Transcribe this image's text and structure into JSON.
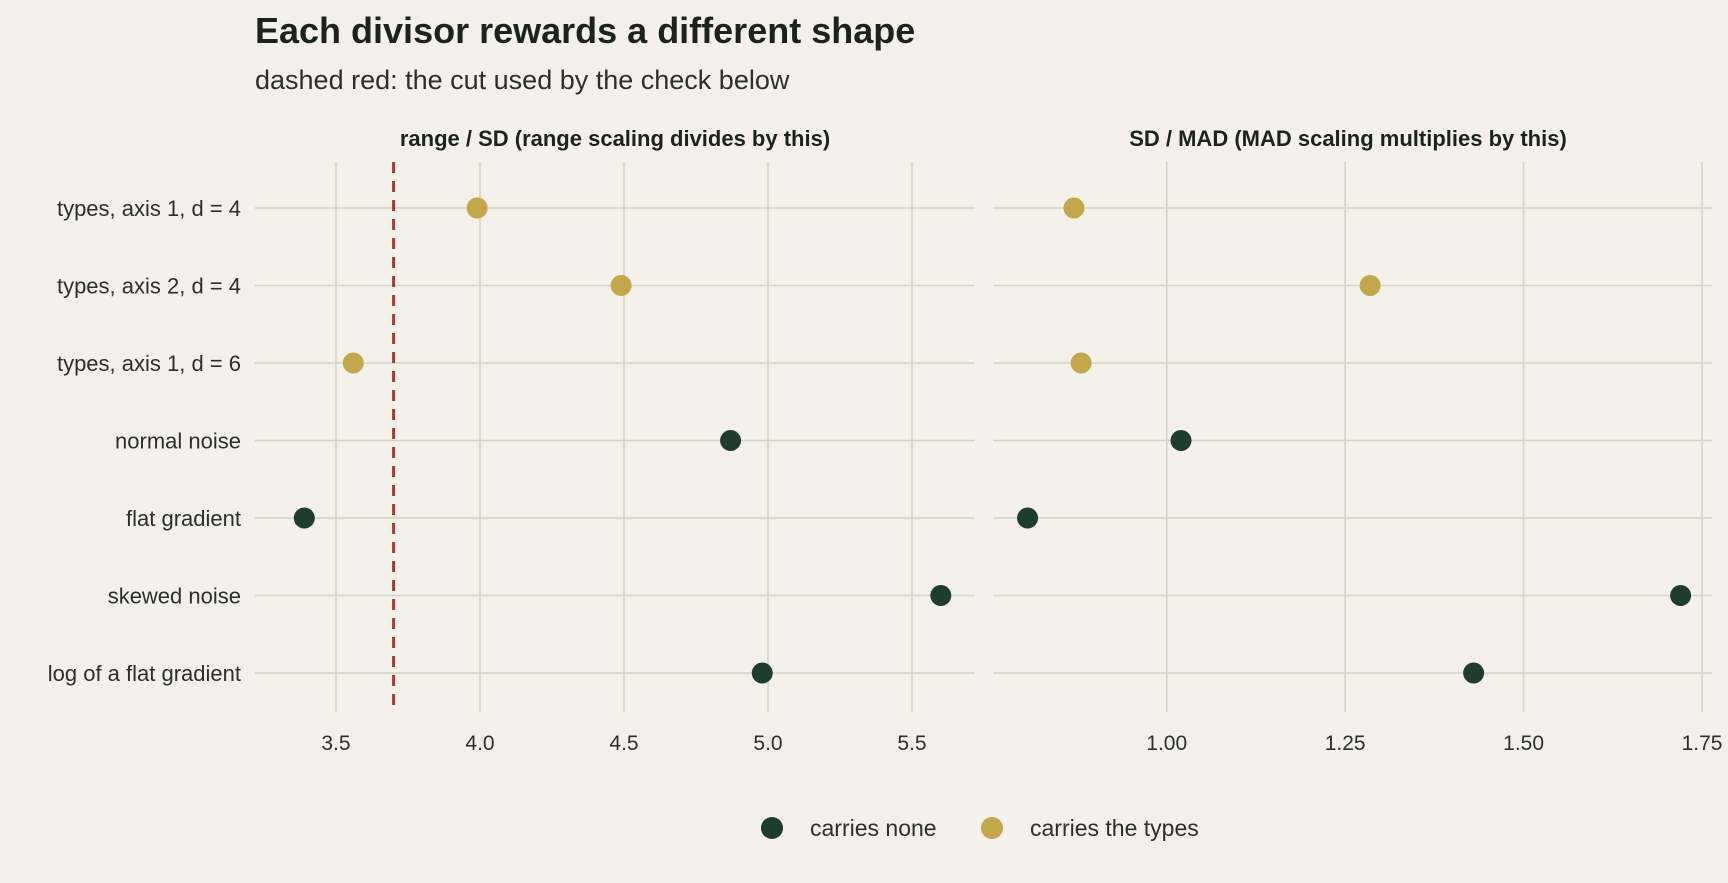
{
  "colors": {
    "background": "#f3f1ea",
    "grid": "#d6d4c6",
    "carries_none": "#1f3d2d",
    "carries_types": "#c2a84a",
    "cut_line": "#a33c37"
  },
  "chart_data": {
    "type": "scatter",
    "title": "Each divisor rewards a different shape",
    "subtitle": "dashed red: the cut used by the check below",
    "categories": [
      "types, axis 1, d = 4",
      "types, axis 2, d = 4",
      "types, axis 1, d = 6",
      "normal noise",
      "flat gradient",
      "skewed noise",
      "log of a flat gradient"
    ],
    "groups": [
      "carries the types",
      "carries the types",
      "carries the types",
      "carries none",
      "carries none",
      "carries none",
      "carries none"
    ],
    "legend": {
      "position": "bottom",
      "entries": [
        {
          "label": "carries none",
          "color": "#1f3d2d"
        },
        {
          "label": "carries the types",
          "color": "#c2a84a"
        }
      ]
    },
    "panels": [
      {
        "title": "range / SD (range scaling divides by this)",
        "xlim": [
          3.25,
          5.7
        ],
        "xticks": [
          3.5,
          4.0,
          4.5,
          5.0,
          5.5
        ],
        "xtick_labels": [
          "3.5",
          "4.0",
          "4.5",
          "5.0",
          "5.5"
        ],
        "values": [
          3.99,
          4.49,
          3.56,
          4.87,
          3.39,
          5.6,
          4.98
        ],
        "cut": 3.7
      },
      {
        "title": "SD / MAD (MAD scaling multiplies by this)",
        "xlim": [
          0.765,
          1.75
        ],
        "xticks": [
          1.0,
          1.25,
          1.5,
          1.75
        ],
        "xtick_labels": [
          "1.00",
          "1.25",
          "1.50",
          "1.75"
        ],
        "values": [
          0.87,
          1.285,
          0.88,
          1.02,
          0.805,
          1.72,
          1.43
        ]
      }
    ]
  }
}
